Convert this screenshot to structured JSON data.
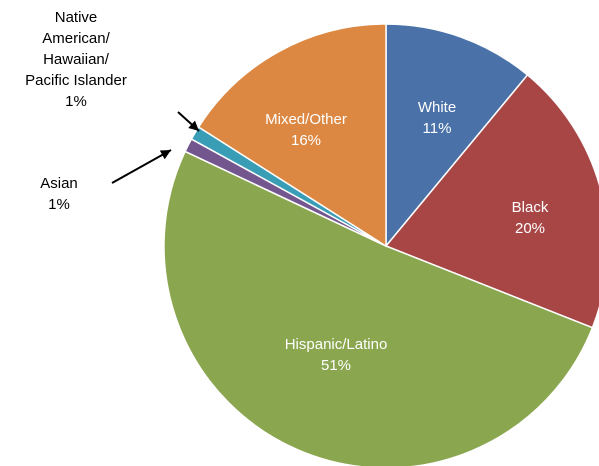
{
  "chart_data": {
    "type": "pie",
    "title": "",
    "legend": "none",
    "categories": [
      "White",
      "Black",
      "Hispanic/Latino",
      "Asian",
      "Native American/ Hawaiian/ Pacific Islander",
      "Mixed/Other"
    ],
    "values": [
      11,
      20,
      51,
      1,
      1,
      16
    ],
    "value_labels": [
      "11%",
      "20%",
      "51%",
      "1%",
      "1%",
      "16%"
    ],
    "colors": [
      "#4a72a8",
      "#a84646",
      "#8aa64e",
      "#74568f",
      "#3a9db6",
      "#dd8842"
    ],
    "label_lines": {
      "White": [
        "White"
      ],
      "Black": [
        "Black"
      ],
      "Hispanic/Latino": [
        "Hispanic/Latino"
      ],
      "Asian": [
        "Asian"
      ],
      "Native American/ Hawaiian/ Pacific Islander": [
        "Native",
        "American/",
        "Hawaiian/",
        "Pacific Islander"
      ],
      "Mixed/Other": [
        "Mixed/Other"
      ]
    },
    "outside_labels": [
      "Asian",
      "Native American/ Hawaiian/ Pacific Islander"
    ]
  }
}
